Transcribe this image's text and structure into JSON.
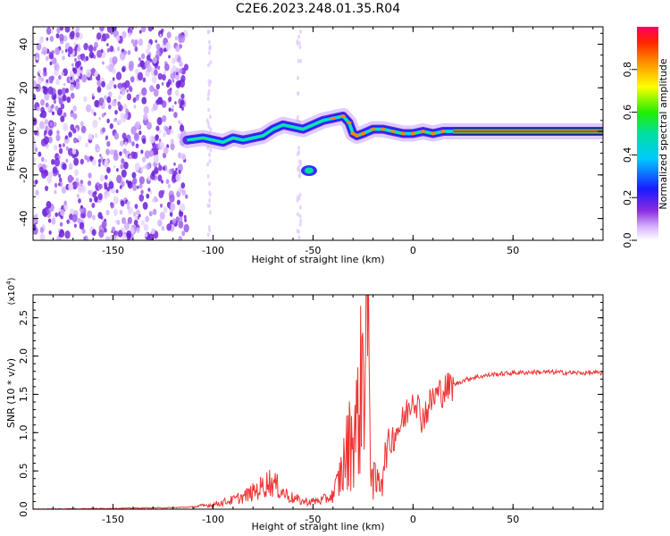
{
  "title": "C2E6.2023.248.01.35.R04",
  "colors": {
    "snr_line": "#ee3333",
    "axis": "#000000"
  },
  "chart_data": [
    {
      "type": "heatmap",
      "xlabel": "Height of straight line (km)",
      "ylabel": "Frequency (Hz)",
      "xlim": [
        -190,
        95
      ],
      "ylim": [
        -50,
        48
      ],
      "xticks": [
        -150,
        -100,
        -50,
        0,
        50
      ],
      "yticks": [
        -40,
        -20,
        0,
        20,
        40
      ],
      "ridge": {
        "x": [
          -113,
          -105,
          -100,
          -95,
          -90,
          -85,
          -80,
          -75,
          -70,
          -65,
          -60,
          -55,
          -50,
          -45,
          -40,
          -35,
          -32,
          -30,
          -28,
          -25,
          -20,
          -15,
          -10,
          -5,
          0,
          5,
          10,
          15,
          20,
          95
        ],
        "y": [
          -4,
          -3,
          -4,
          -5,
          -3,
          -4,
          -3,
          -2,
          1,
          3,
          2,
          1,
          3,
          5,
          6,
          7,
          4,
          -1,
          -2,
          -1,
          1,
          1,
          0,
          -1,
          -1,
          0,
          -1,
          0,
          0,
          0
        ]
      },
      "island": {
        "x": -52,
        "y": -18
      },
      "colorbar": {
        "label": "Normalized spectral amplitude",
        "ticks": [
          0.0,
          0.2,
          0.4,
          0.6,
          0.8
        ],
        "range": [
          0,
          1
        ]
      }
    },
    {
      "type": "line",
      "xlabel": "Height of straight line (km)",
      "ylabel": "SNR (10 * v/v)",
      "yscale_label": "(x10",
      "yscale_exp": "4",
      "yscale_close": ")",
      "xlim": [
        -190,
        95
      ],
      "ylim": [
        0,
        2.8
      ],
      "xticks": [
        -150,
        -100,
        -50,
        0,
        50
      ],
      "yticks": [
        "0.0",
        "0.5",
        "1.0",
        "1.5",
        "2.0",
        "2.5"
      ],
      "series": [
        {
          "x": [
            -190,
            -150,
            -120,
            -110,
            -100,
            -95,
            -90,
            -85,
            -80,
            -75,
            -72,
            -68,
            -65,
            -60,
            -55,
            -50,
            -45,
            -40,
            -38,
            -35,
            -32,
            -30,
            -28,
            -26,
            -25,
            -24,
            -23,
            -22,
            -21,
            -20,
            -18,
            -16,
            -14,
            -12,
            -10,
            -8,
            -6,
            -4,
            -2,
            0,
            2,
            4,
            6,
            8,
            10,
            12,
            15,
            20,
            25,
            30,
            40,
            50,
            60,
            70,
            80,
            95
          ],
          "y": [
            0.0,
            0.01,
            0.02,
            0.03,
            0.06,
            0.09,
            0.12,
            0.16,
            0.22,
            0.3,
            0.36,
            0.3,
            0.22,
            0.14,
            0.1,
            0.1,
            0.12,
            0.18,
            0.3,
            0.55,
            0.85,
            1.0,
            1.1,
            1.6,
            1.95,
            2.3,
            2.7,
            1.5,
            0.8,
            0.4,
            0.3,
            0.45,
            0.7,
            0.85,
            0.95,
            1.05,
            1.1,
            1.2,
            1.35,
            1.5,
            1.4,
            1.2,
            1.25,
            1.35,
            1.45,
            1.5,
            1.55,
            1.62,
            1.68,
            1.72,
            1.76,
            1.78,
            1.79,
            1.79,
            1.78,
            1.78
          ]
        }
      ]
    }
  ]
}
